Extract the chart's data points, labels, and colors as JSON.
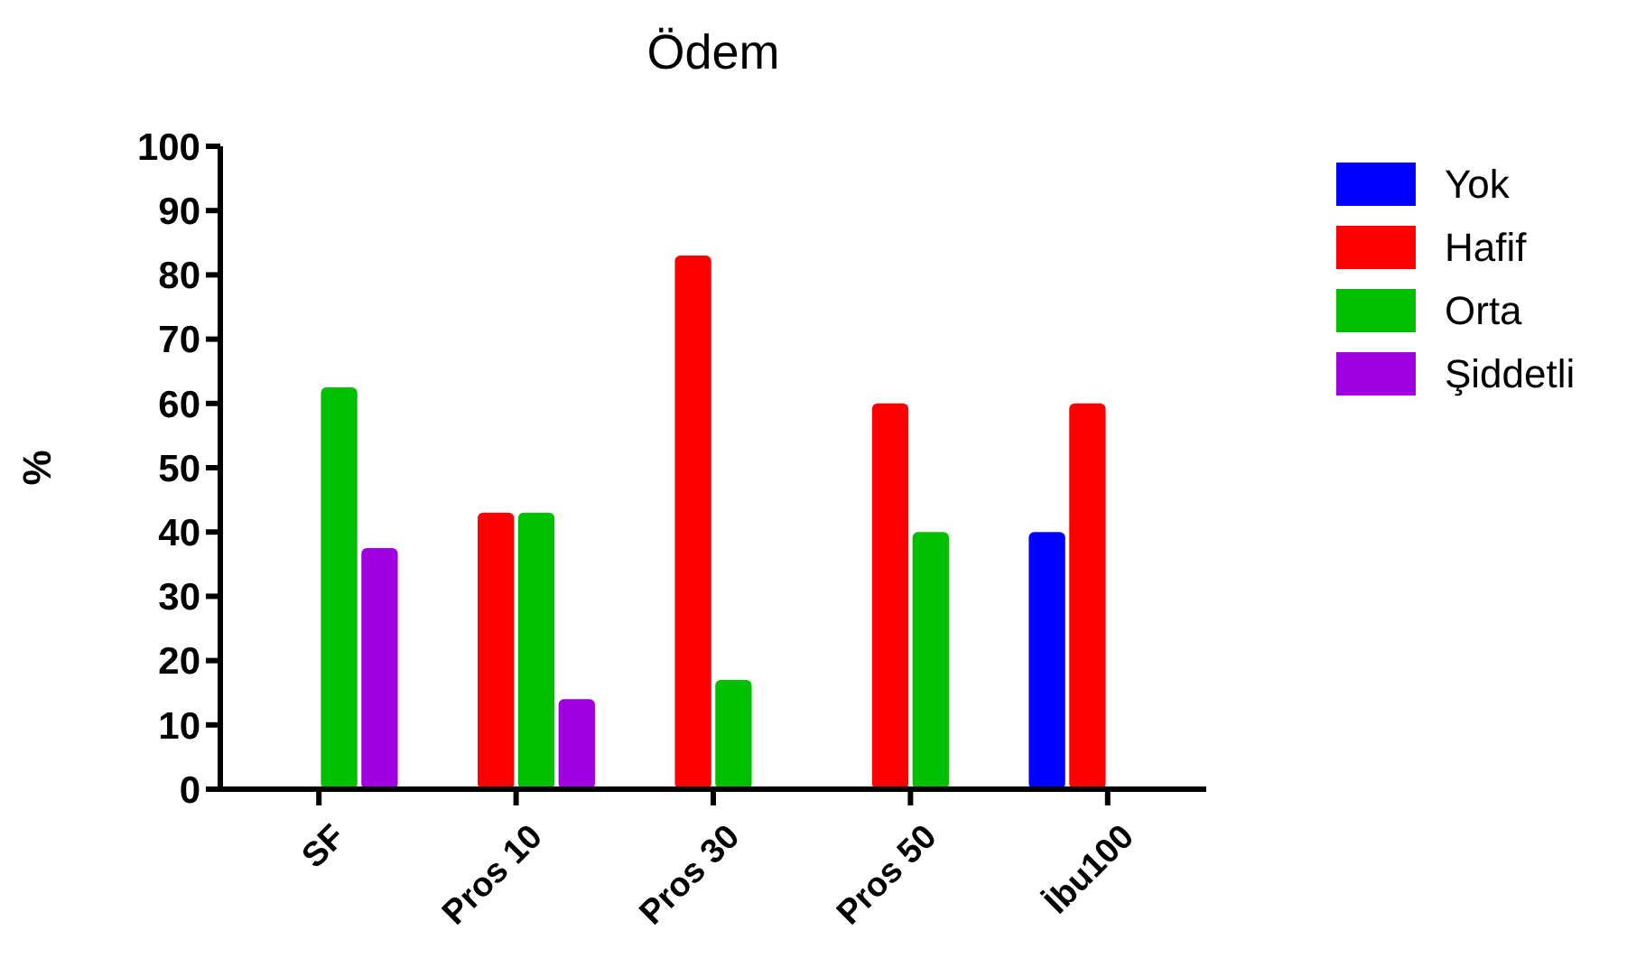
{
  "chart_data": {
    "type": "bar",
    "title": "Ödem",
    "ylabel": "%",
    "categories": [
      "SF",
      "Pros 10",
      "Pros 30",
      "Pros 50",
      "İbu100"
    ],
    "series": [
      {
        "name": "Yok",
        "color": "#0000ff",
        "values": [
          0,
          0,
          0,
          0,
          40
        ]
      },
      {
        "name": "Hafif",
        "color": "#ff0000",
        "values": [
          0,
          43,
          83,
          60,
          60
        ]
      },
      {
        "name": "Orta",
        "color": "#00c000",
        "values": [
          62.5,
          43,
          17,
          40,
          0
        ]
      },
      {
        "name": "Şiddetli",
        "color": "#a000e0",
        "values": [
          37.5,
          14,
          0,
          0,
          0
        ]
      }
    ],
    "ylim": [
      0,
      100
    ],
    "yticks": [
      0,
      10,
      20,
      30,
      40,
      50,
      60,
      70,
      80,
      90,
      100
    ],
    "grid": false,
    "legend": "top right"
  }
}
